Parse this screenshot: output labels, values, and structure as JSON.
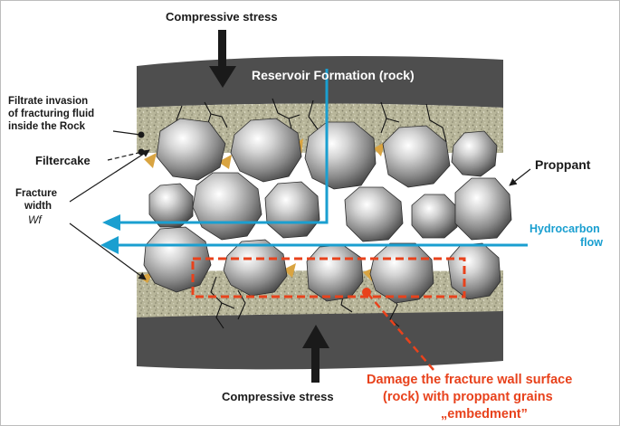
{
  "labels": {
    "compressive_top": "Compressive stress",
    "compressive_bottom": "Compressive stress",
    "reservoir": "Reservoir Formation (rock)",
    "filtrate_line1": "Filtrate invasion",
    "filtrate_line2": "of fracturing fluid",
    "filtrate_line3": "inside the Rock",
    "filtercake": "Filtercake",
    "fracture_width_line1": "Fracture",
    "fracture_width_line2": "width",
    "fracture_width_symbol": "Wf",
    "proppant": "Proppant",
    "hydrocarbon_line1": "Hydrocarbon",
    "hydrocarbon_line2": "flow",
    "damage_line1": "Damage the fracture wall surface",
    "damage_line2": "(rock) with proppant grains",
    "damage_line3": "„embedment”"
  },
  "colors": {
    "rock": "#4e4e4e",
    "filtrate_zone": "#b8b69a",
    "filtercake": "#d9a441",
    "hydrocarbon": "#1a9fd0",
    "damage": "#e8421c",
    "proppant_light": "#ffffff",
    "proppant_dark": "#5e5e5e"
  }
}
